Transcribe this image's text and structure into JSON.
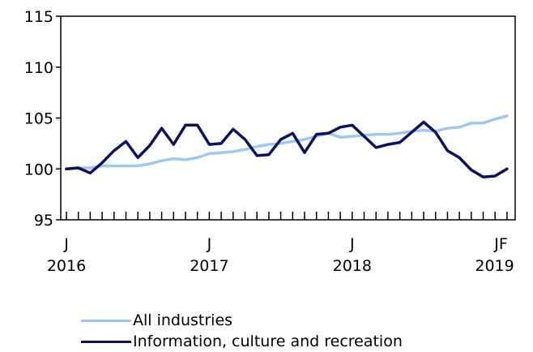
{
  "chart_data": {
    "type": "line",
    "title": "",
    "xlabel": "",
    "ylabel": "",
    "ylim": [
      95,
      115
    ],
    "yticks": [
      95,
      100,
      105,
      110,
      115
    ],
    "grid": false,
    "legend_position": "bottom",
    "x_tick_labels": [
      {
        "index": 0,
        "month": "J",
        "year": "2016"
      },
      {
        "index": 12,
        "month": "J",
        "year": "2017"
      },
      {
        "index": 24,
        "month": "J",
        "year": "2018"
      },
      {
        "index": 36,
        "month": "J",
        "year": "2019"
      },
      {
        "index": 37,
        "month": "F",
        "year": ""
      }
    ],
    "x": [
      "2016-01",
      "2016-02",
      "2016-03",
      "2016-04",
      "2016-05",
      "2016-06",
      "2016-07",
      "2016-08",
      "2016-09",
      "2016-10",
      "2016-11",
      "2016-12",
      "2017-01",
      "2017-02",
      "2017-03",
      "2017-04",
      "2017-05",
      "2017-06",
      "2017-07",
      "2017-08",
      "2017-09",
      "2017-10",
      "2017-11",
      "2017-12",
      "2018-01",
      "2018-02",
      "2018-03",
      "2018-04",
      "2018-05",
      "2018-06",
      "2018-07",
      "2018-08",
      "2018-09",
      "2018-10",
      "2018-11",
      "2018-12",
      "2019-01",
      "2019-02"
    ],
    "series": [
      {
        "name": "All industries",
        "color": "#9dc9f1",
        "values": [
          100.0,
          100.1,
          100.1,
          100.3,
          100.3,
          100.3,
          100.3,
          100.5,
          100.8,
          101.0,
          100.9,
          101.1,
          101.5,
          101.6,
          101.7,
          101.9,
          102.2,
          102.4,
          102.5,
          102.7,
          102.9,
          103.2,
          103.5,
          103.1,
          103.2,
          103.3,
          103.4,
          103.4,
          103.5,
          103.7,
          103.8,
          103.7,
          104.0,
          104.1,
          104.5,
          104.5,
          104.9,
          105.2
        ]
      },
      {
        "name": "Information, culture and recreation",
        "color": "#0b1064",
        "values": [
          100.0,
          100.1,
          99.6,
          100.6,
          101.8,
          102.7,
          101.1,
          102.3,
          104.0,
          102.4,
          104.3,
          104.3,
          102.4,
          102.5,
          103.9,
          102.9,
          101.3,
          101.4,
          102.9,
          103.5,
          101.6,
          103.4,
          103.5,
          104.1,
          104.3,
          103.2,
          102.1,
          102.4,
          102.6,
          103.6,
          104.6,
          103.6,
          101.8,
          101.1,
          99.9,
          99.2,
          99.3,
          100.0
        ]
      }
    ]
  }
}
